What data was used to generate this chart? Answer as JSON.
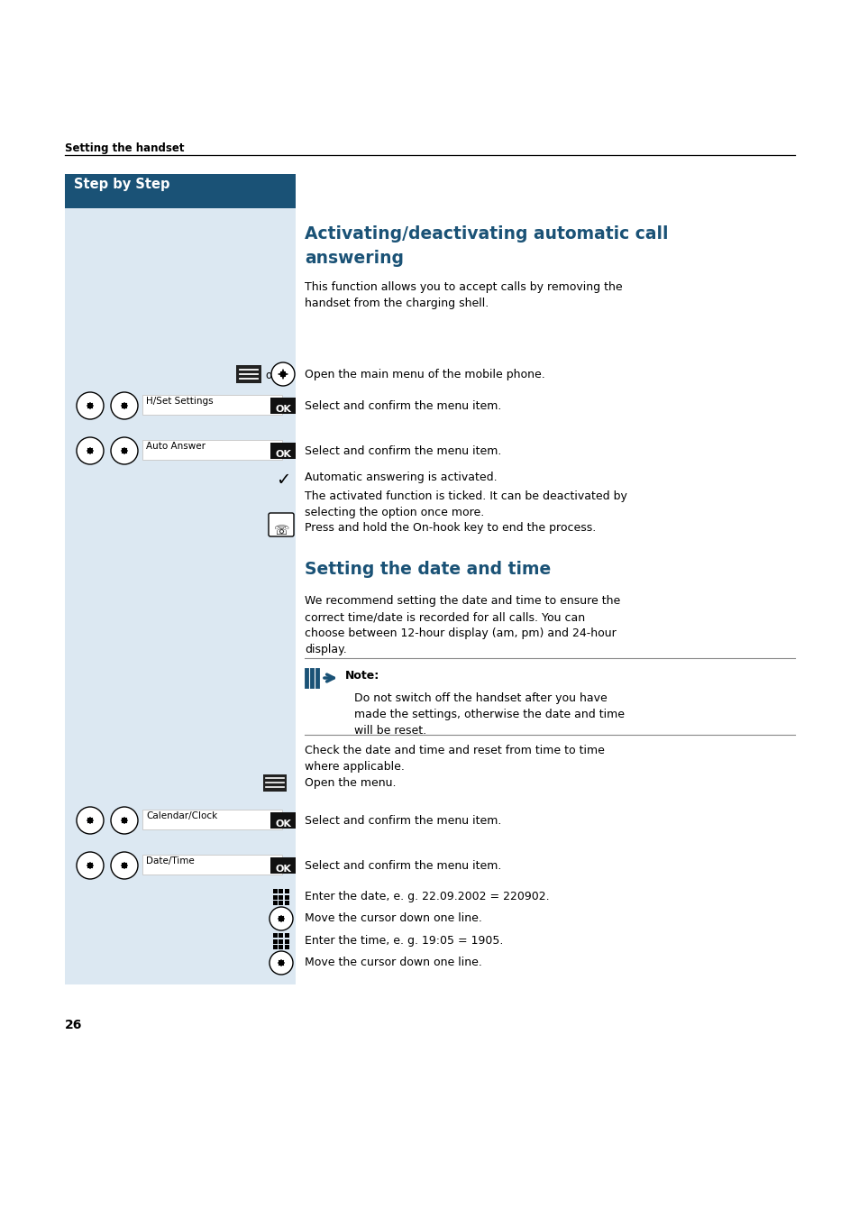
{
  "page_bg": "#ffffff",
  "header_label": "Setting the handset",
  "sidebar_header_text": "Step by Step",
  "sidebar_header_bg": "#1a5276",
  "sidebar_bg": "#dce8f2",
  "section1_title_line1": "Activating/deactivating automatic call",
  "section1_title_line2": "answering",
  "section1_color": "#1a5276",
  "section1_desc": "This function allows you to accept calls by removing the\nhandset from the charging shell.",
  "row1_text": "Open the main menu of the mobile phone.",
  "row2_label": "H/Set Settings",
  "row2_text": "Select and confirm the menu item.",
  "row3_label": "Auto Answer",
  "row3_text": "Select and confirm the menu item.",
  "check_text": "Automatic answering is activated.",
  "deactivate_text": "The activated function is ticked. It can be deactivated by\nselecting the option once more.",
  "onhook_text": "Press and hold the On-hook key to end the process.",
  "section2_title": "Setting the date and time",
  "section2_color": "#1a5276",
  "section2_desc": "We recommend setting the date and time to ensure the\ncorrect time/date is recorded for all calls. You can\nchoose between 12-hour display (am, pm) and 24-hour\ndisplay.",
  "note_label": "Note:",
  "note_text": "Do not switch off the handset after you have\nmade the settings, otherwise the date and time\nwill be reset.",
  "check_datetime_text": "Check the date and time and reset from time to time\nwhere applicable.",
  "open_menu_text": "Open the menu.",
  "row_calendar_label": "Calendar/Clock",
  "row_calendar_text": "Select and confirm the menu item.",
  "row_datetime_label": "Date/Time",
  "row_datetime_text": "Select and confirm the menu item.",
  "enter_date_text": "Enter the date, e. g. 22.09.2002 = 220902.",
  "cursor_down1": "Move the cursor down one line.",
  "enter_time_text": "Enter the time, e. g. 19:05 = 1905.",
  "cursor_down2": "Move the cursor down one line.",
  "page_number": "26",
  "ok_bg": "#111111",
  "ok_color": "#ffffff",
  "note_arrow_color": "#1a5276"
}
